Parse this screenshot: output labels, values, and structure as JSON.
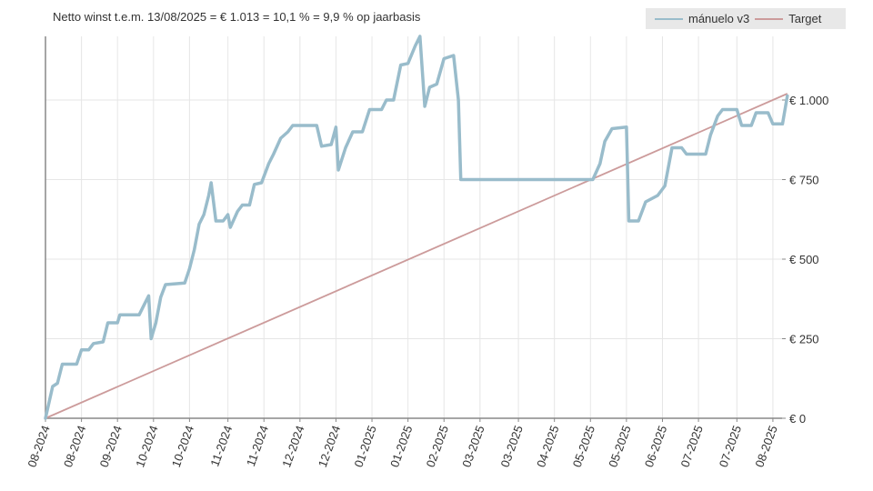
{
  "chart_data": {
    "type": "line",
    "title": "Netto winst t.e.m. 13/08/2025 = € 1.013 = 10,1 % = 9,9 % op jaarbasis",
    "xlabel": "",
    "ylabel": "",
    "ylim": [
      0,
      1200
    ],
    "xlim": [
      "2024-08-13",
      "2025-08-13"
    ],
    "grid": true,
    "legend_position": "top-right",
    "y_ticks": [
      {
        "value": 0,
        "label": "€ 0"
      },
      {
        "value": 250,
        "label": "€ 250"
      },
      {
        "value": 500,
        "label": "€ 500"
      },
      {
        "value": 750,
        "label": "€ 750"
      },
      {
        "value": 1000,
        "label": "€ 1.000"
      }
    ],
    "x_ticks": [
      {
        "date": "2024-08-13",
        "label": "08-2024"
      },
      {
        "date": "2024-08-28",
        "label": "08-2024"
      },
      {
        "date": "2024-09-12",
        "label": "09-2024"
      },
      {
        "date": "2024-09-27",
        "label": "10-2024"
      },
      {
        "date": "2024-10-12",
        "label": "10-2024"
      },
      {
        "date": "2024-10-28",
        "label": "11-2024"
      },
      {
        "date": "2024-11-12",
        "label": "11-2024"
      },
      {
        "date": "2024-11-27",
        "label": "12-2024"
      },
      {
        "date": "2024-12-12",
        "label": "12-2024"
      },
      {
        "date": "2024-12-27",
        "label": "01-2025"
      },
      {
        "date": "2025-01-11",
        "label": "01-2025"
      },
      {
        "date": "2025-01-26",
        "label": "02-2025"
      },
      {
        "date": "2025-02-10",
        "label": "03-2025"
      },
      {
        "date": "2025-02-26",
        "label": "03-2025"
      },
      {
        "date": "2025-03-13",
        "label": "04-2025"
      },
      {
        "date": "2025-03-28",
        "label": "05-2025"
      },
      {
        "date": "2025-04-12",
        "label": "05-2025"
      },
      {
        "date": "2025-04-27",
        "label": "06-2025"
      },
      {
        "date": "2025-05-12",
        "label": "07-2025"
      },
      {
        "date": "2025-05-28",
        "label": "07-2025"
      },
      {
        "date": "2025-06-12",
        "label": "08-2025"
      }
    ],
    "series": [
      {
        "name": "mánuelo v3",
        "color": "#99bccb",
        "points": [
          [
            "2024-08-13",
            0
          ],
          [
            "2024-08-16",
            100
          ],
          [
            "2024-08-18",
            110
          ],
          [
            "2024-08-20",
            170
          ],
          [
            "2024-08-26",
            170
          ],
          [
            "2024-08-28",
            215
          ],
          [
            "2024-08-31",
            215
          ],
          [
            "2024-09-02",
            235
          ],
          [
            "2024-09-06",
            240
          ],
          [
            "2024-09-08",
            300
          ],
          [
            "2024-09-12",
            300
          ],
          [
            "2024-09-13",
            325
          ],
          [
            "2024-09-21",
            325
          ],
          [
            "2024-09-23",
            355
          ],
          [
            "2024-09-25",
            385
          ],
          [
            "2024-09-26",
            250
          ],
          [
            "2024-09-28",
            300
          ],
          [
            "2024-09-30",
            380
          ],
          [
            "2024-10-02",
            420
          ],
          [
            "2024-10-10",
            425
          ],
          [
            "2024-10-12",
            470
          ],
          [
            "2024-10-14",
            530
          ],
          [
            "2024-10-16",
            610
          ],
          [
            "2024-10-18",
            640
          ],
          [
            "2024-10-20",
            700
          ],
          [
            "2024-10-21",
            740
          ],
          [
            "2024-10-23",
            620
          ],
          [
            "2024-10-26",
            620
          ],
          [
            "2024-10-28",
            640
          ],
          [
            "2024-10-29",
            600
          ],
          [
            "2024-11-01",
            650
          ],
          [
            "2024-11-03",
            670
          ],
          [
            "2024-11-06",
            670
          ],
          [
            "2024-11-08",
            735
          ],
          [
            "2024-11-11",
            740
          ],
          [
            "2024-11-14",
            800
          ],
          [
            "2024-11-16",
            830
          ],
          [
            "2024-11-19",
            880
          ],
          [
            "2024-11-22",
            900
          ],
          [
            "2024-11-24",
            920
          ],
          [
            "2024-12-04",
            920
          ],
          [
            "2024-12-06",
            855
          ],
          [
            "2024-12-10",
            860
          ],
          [
            "2024-12-12",
            915
          ],
          [
            "2024-12-13",
            780
          ],
          [
            "2024-12-16",
            850
          ],
          [
            "2024-12-19",
            900
          ],
          [
            "2024-12-23",
            900
          ],
          [
            "2024-12-26",
            970
          ],
          [
            "2024-12-31",
            970
          ],
          [
            "2025-01-02",
            1000
          ],
          [
            "2025-01-05",
            1000
          ],
          [
            "2025-01-08",
            1110
          ],
          [
            "2025-01-11",
            1115
          ],
          [
            "2025-01-14",
            1170
          ],
          [
            "2025-01-16",
            1200
          ],
          [
            "2025-01-18",
            980
          ],
          [
            "2025-01-20",
            1040
          ],
          [
            "2025-01-23",
            1050
          ],
          [
            "2025-01-26",
            1130
          ],
          [
            "2025-01-30",
            1140
          ],
          [
            "2025-02-01",
            1000
          ],
          [
            "2025-02-02",
            750
          ],
          [
            "2025-03-29",
            750
          ],
          [
            "2025-04-01",
            800
          ],
          [
            "2025-04-03",
            870
          ],
          [
            "2025-04-06",
            910
          ],
          [
            "2025-04-12",
            915
          ],
          [
            "2025-04-13",
            620
          ],
          [
            "2025-04-17",
            620
          ],
          [
            "2025-04-20",
            680
          ],
          [
            "2025-04-25",
            700
          ],
          [
            "2025-04-28",
            730
          ],
          [
            "2025-05-01",
            850
          ],
          [
            "2025-05-05",
            850
          ],
          [
            "2025-05-07",
            830
          ],
          [
            "2025-05-15",
            830
          ],
          [
            "2025-05-17",
            890
          ],
          [
            "2025-05-20",
            950
          ],
          [
            "2025-05-22",
            970
          ],
          [
            "2025-05-28",
            970
          ],
          [
            "2025-05-30",
            920
          ],
          [
            "2025-06-03",
            920
          ],
          [
            "2025-06-05",
            960
          ],
          [
            "2025-06-10",
            960
          ],
          [
            "2025-06-12",
            925
          ],
          [
            "2025-06-16",
            925
          ],
          [
            "2025-06-18",
            1013
          ]
        ]
      },
      {
        "name": "Target",
        "color": "#cc9b9b",
        "points": [
          [
            "2024-08-13",
            0
          ],
          [
            "2025-06-18",
            1020
          ]
        ]
      }
    ]
  }
}
